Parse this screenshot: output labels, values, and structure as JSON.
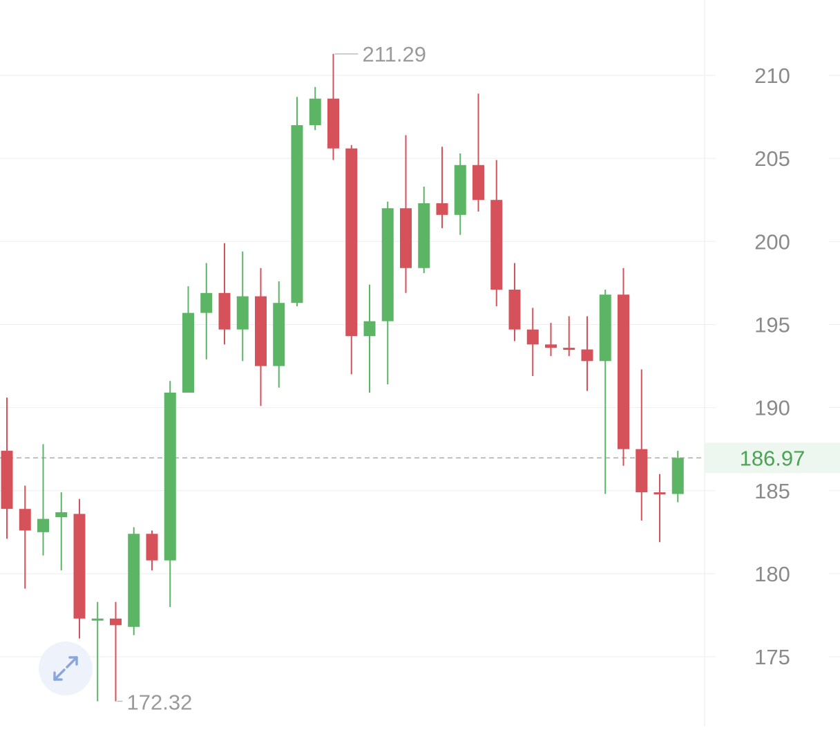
{
  "chart_data": {
    "type": "candlestick",
    "ylim": [
      172,
      214
    ],
    "y_ticks": [
      "210",
      "205",
      "200",
      "195",
      "190",
      "185",
      "180",
      "175"
    ],
    "current_price": "186.97",
    "current_price_value": 186.97,
    "high_label": "211.29",
    "high_value": 211.29,
    "low_label": "172.32",
    "low_value": 172.32,
    "grid": true,
    "colors": {
      "up": "#5cb465",
      "down": "#d6525a",
      "grid": "#eeeeee",
      "axis_text": "#8a8a8a",
      "annotation_text": "#9a9a9a",
      "current_price_text": "#4ca255",
      "current_price_bg": "#eef7ef",
      "dashed_line": "#aaaaaa"
    },
    "candles": [
      {
        "o": 187.4,
        "h": 190.6,
        "l": 182.1,
        "c": 183.9
      },
      {
        "o": 183.9,
        "h": 185.3,
        "l": 179.1,
        "c": 182.6
      },
      {
        "o": 182.5,
        "h": 187.8,
        "l": 181.1,
        "c": 183.3
      },
      {
        "o": 183.4,
        "h": 184.9,
        "l": 180.2,
        "c": 183.7
      },
      {
        "o": 183.6,
        "h": 184.5,
        "l": 176.1,
        "c": 177.3
      },
      {
        "o": 177.3,
        "h": 178.3,
        "l": 172.32,
        "c": 177.3
      },
      {
        "o": 177.3,
        "h": 178.3,
        "l": 172.32,
        "c": 176.9
      },
      {
        "o": 176.8,
        "h": 182.8,
        "l": 176.3,
        "c": 182.4
      },
      {
        "o": 182.4,
        "h": 182.6,
        "l": 180.2,
        "c": 180.8
      },
      {
        "o": 180.8,
        "h": 191.6,
        "l": 178.0,
        "c": 190.9
      },
      {
        "o": 190.9,
        "h": 197.3,
        "l": 190.9,
        "c": 195.7
      },
      {
        "o": 195.7,
        "h": 198.7,
        "l": 192.9,
        "c": 196.9
      },
      {
        "o": 196.9,
        "h": 199.9,
        "l": 193.8,
        "c": 194.7
      },
      {
        "o": 194.7,
        "h": 199.4,
        "l": 192.8,
        "c": 196.7
      },
      {
        "o": 196.7,
        "h": 198.4,
        "l": 190.1,
        "c": 192.5
      },
      {
        "o": 192.5,
        "h": 197.6,
        "l": 191.2,
        "c": 196.3
      },
      {
        "o": 196.3,
        "h": 208.7,
        "l": 196.1,
        "c": 207.0
      },
      {
        "o": 207.0,
        "h": 209.3,
        "l": 206.7,
        "c": 208.6
      },
      {
        "o": 208.6,
        "h": 211.29,
        "l": 204.9,
        "c": 205.6
      },
      {
        "o": 205.6,
        "h": 205.8,
        "l": 192.0,
        "c": 194.3
      },
      {
        "o": 194.3,
        "h": 197.4,
        "l": 190.9,
        "c": 195.2
      },
      {
        "o": 195.2,
        "h": 202.4,
        "l": 191.4,
        "c": 202.0
      },
      {
        "o": 202.0,
        "h": 206.4,
        "l": 196.9,
        "c": 198.4
      },
      {
        "o": 198.4,
        "h": 203.3,
        "l": 198.1,
        "c": 202.3
      },
      {
        "o": 202.3,
        "h": 205.7,
        "l": 200.8,
        "c": 201.6
      },
      {
        "o": 201.6,
        "h": 205.3,
        "l": 200.4,
        "c": 204.6
      },
      {
        "o": 204.6,
        "h": 208.9,
        "l": 201.8,
        "c": 202.5
      },
      {
        "o": 202.5,
        "h": 204.9,
        "l": 196.1,
        "c": 197.1
      },
      {
        "o": 197.1,
        "h": 198.7,
        "l": 194.0,
        "c": 194.7
      },
      {
        "o": 194.7,
        "h": 196.0,
        "l": 191.9,
        "c": 193.8
      },
      {
        "o": 193.8,
        "h": 195.1,
        "l": 193.1,
        "c": 193.6
      },
      {
        "o": 193.6,
        "h": 195.5,
        "l": 193.1,
        "c": 193.5
      },
      {
        "o": 193.5,
        "h": 195.5,
        "l": 191.0,
        "c": 192.8
      },
      {
        "o": 192.8,
        "h": 197.1,
        "l": 184.8,
        "c": 196.8
      },
      {
        "o": 196.8,
        "h": 198.4,
        "l": 186.5,
        "c": 187.5
      },
      {
        "o": 187.5,
        "h": 192.3,
        "l": 183.2,
        "c": 184.9
      },
      {
        "o": 184.9,
        "h": 186.0,
        "l": 181.9,
        "c": 184.8
      },
      {
        "o": 184.8,
        "h": 187.4,
        "l": 184.3,
        "c": 186.97
      }
    ]
  },
  "toolbar": {
    "expand_icon": "expand-icon"
  }
}
